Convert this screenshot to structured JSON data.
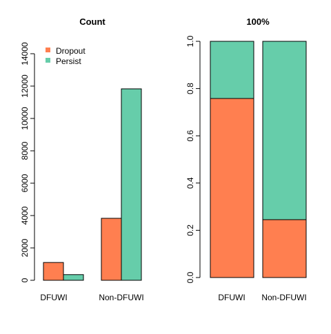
{
  "colors": {
    "dropout": "#FF7F50",
    "persist": "#66CDAA"
  },
  "chart_data": [
    {
      "type": "bar",
      "title": "Count",
      "categories": [
        "DFUWI",
        "Non-DFUWI"
      ],
      "series": [
        {
          "name": "Dropout",
          "values": [
            1100,
            3830
          ]
        },
        {
          "name": "Persist",
          "values": [
            350,
            11830
          ]
        }
      ],
      "ylim": [
        0,
        15000
      ],
      "yticks": [
        0,
        2000,
        4000,
        6000,
        8000,
        10000,
        12000,
        14000
      ],
      "ytick_labels": [
        "0",
        "2000",
        "4000",
        "6000",
        "8000",
        "10000",
        "12000",
        "14000"
      ],
      "legend": {
        "entries": [
          "Dropout",
          "Persist"
        ],
        "position": "top-left"
      },
      "grid": false
    },
    {
      "type": "bar",
      "title": "100%",
      "categories": [
        "DFUWI",
        "Non-DFUWI"
      ],
      "stacked": true,
      "series": [
        {
          "name": "Dropout",
          "values": [
            0.758,
            0.245
          ]
        },
        {
          "name": "Persist",
          "values": [
            0.242,
            0.755
          ]
        }
      ],
      "ylim": [
        0,
        1.0
      ],
      "yticks": [
        0,
        0.2,
        0.4,
        0.6,
        0.8,
        1.0
      ],
      "ytick_labels": [
        "0.0",
        "0.2",
        "0.4",
        "0.6",
        "0.8",
        "1.0"
      ],
      "grid": false
    }
  ]
}
